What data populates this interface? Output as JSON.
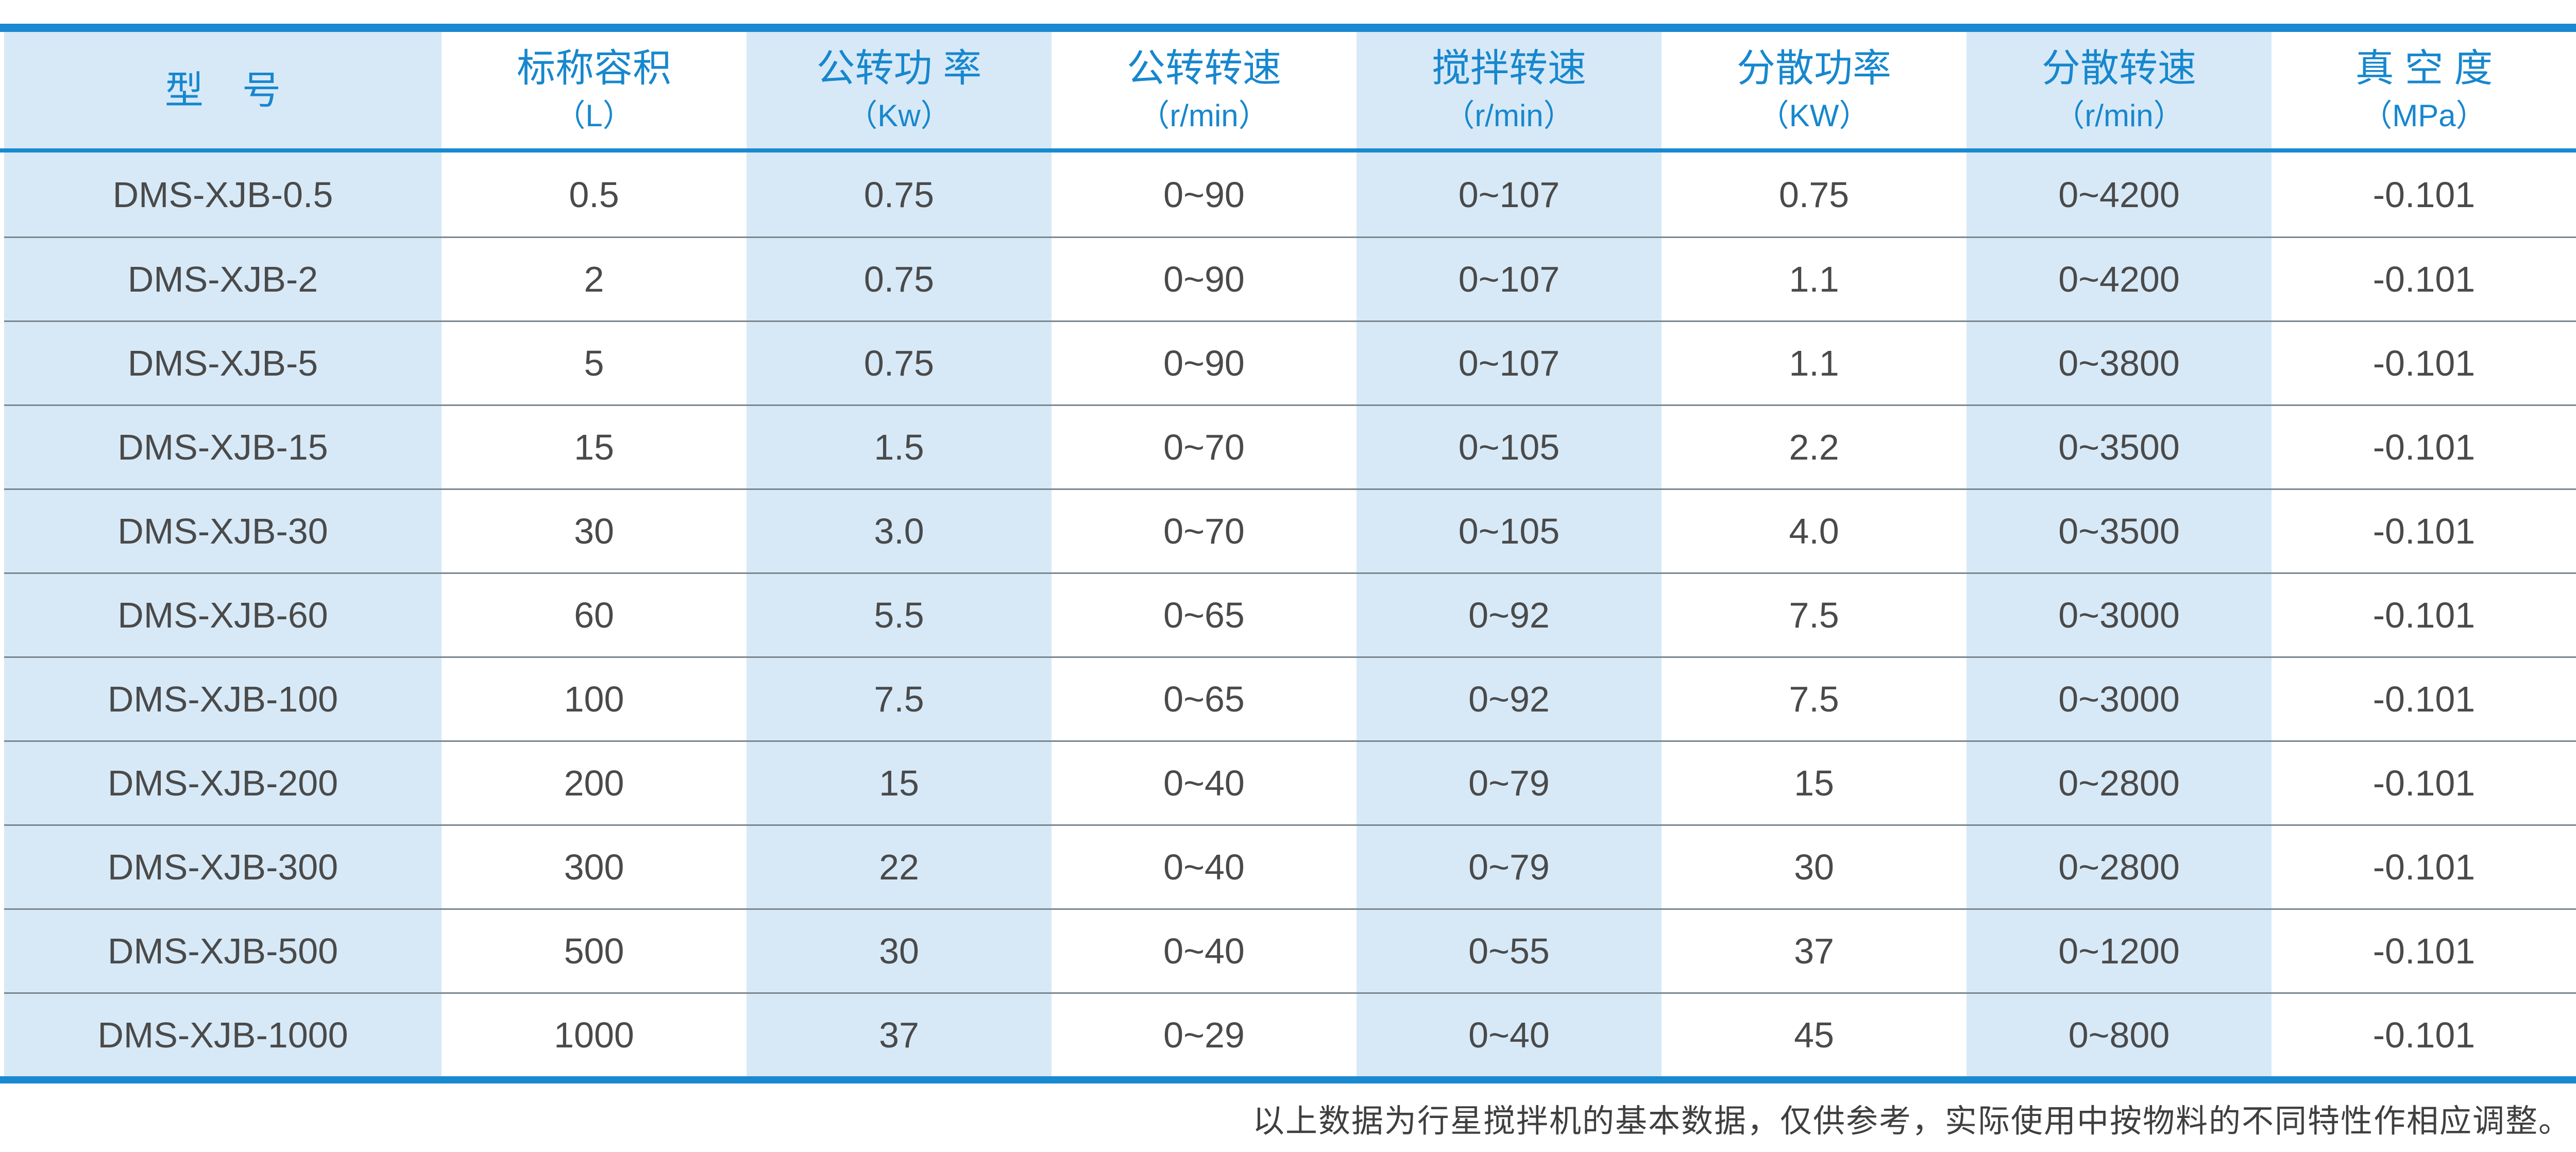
{
  "colors": {
    "accent_blue": "#1989D1",
    "header_blue": "#1787CE",
    "light_blue": "#D7E9F7",
    "text_gray": "#4A4A4A",
    "separator_gray": "#7B868E"
  },
  "table": {
    "columns": [
      {
        "title": "型　号",
        "unit": ""
      },
      {
        "title": "标称容积",
        "unit": "（L）"
      },
      {
        "title": "公转功 率",
        "unit": "（Kw）"
      },
      {
        "title": "公转转速",
        "unit": "（r/min）"
      },
      {
        "title": "搅拌转速",
        "unit": "（r/min）"
      },
      {
        "title": "分散功率",
        "unit": "（KW）"
      },
      {
        "title": "分散转速",
        "unit": "（r/min）"
      },
      {
        "title": "真 空 度",
        "unit": "（MPa）"
      }
    ],
    "rows": [
      {
        "model": "DMS-XJB-0.5",
        "values": [
          "0.5",
          "0.75",
          "0~90",
          "0~107",
          "0.75",
          "0~4200",
          "-0.101"
        ]
      },
      {
        "model": "DMS-XJB-2",
        "values": [
          "2",
          "0.75",
          "0~90",
          "0~107",
          "1.1",
          "0~4200",
          "-0.101"
        ]
      },
      {
        "model": "DMS-XJB-5",
        "values": [
          "5",
          "0.75",
          "0~90",
          "0~107",
          "1.1",
          "0~3800",
          "-0.101"
        ]
      },
      {
        "model": "DMS-XJB-15",
        "values": [
          "15",
          "1.5",
          "0~70",
          "0~105",
          "2.2",
          "0~3500",
          "-0.101"
        ]
      },
      {
        "model": "DMS-XJB-30",
        "values": [
          "30",
          "3.0",
          "0~70",
          "0~105",
          "4.0",
          "0~3500",
          "-0.101"
        ]
      },
      {
        "model": "DMS-XJB-60",
        "values": [
          "60",
          "5.5",
          "0~65",
          "0~92",
          "7.5",
          "0~3000",
          "-0.101"
        ]
      },
      {
        "model": "DMS-XJB-100",
        "values": [
          "100",
          "7.5",
          "0~65",
          "0~92",
          "7.5",
          "0~3000",
          "-0.101"
        ]
      },
      {
        "model": "DMS-XJB-200",
        "values": [
          "200",
          "15",
          "0~40",
          "0~79",
          "15",
          "0~2800",
          "-0.101"
        ]
      },
      {
        "model": "DMS-XJB-300",
        "values": [
          "300",
          "22",
          "0~40",
          "0~79",
          "30",
          "0~2800",
          "-0.101"
        ]
      },
      {
        "model": "DMS-XJB-500",
        "values": [
          "500",
          "30",
          "0~40",
          "0~55",
          "37",
          "0~1200",
          "-0.101"
        ]
      },
      {
        "model": "DMS-XJB-1000",
        "values": [
          "1000",
          "37",
          "0~29",
          "0~40",
          "45",
          "0~800",
          "-0.101"
        ]
      }
    ]
  },
  "footnote": "以上数据为行星搅拌机的基本数据，仅供参考，实际使用中按物料的不同特性作相应调整。"
}
